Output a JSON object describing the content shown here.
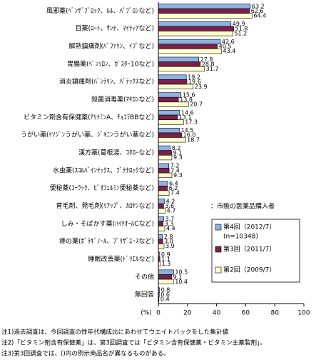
{
  "chart_data": {
    "type": "hbar",
    "categories": [
      "風邪薬(ﾍﾞﾝｻﾞﾌﾞﾛｯｸ、ﾙﾙ、ﾊﾟﾌﾞﾛﾝなど)",
      "目薬(ﾛｰﾄ、ｻﾝﾃ、ﾏｲﾃｨｱなど)",
      "解熱鎮痛剤(ﾊﾞﾌｧﾘﾝ、ｲﾌﾞなど)",
      "胃腸薬(ﾍﾞﾝｿﾛﾝ、ｶﾞｽﾀｰ10など)",
      "消炎鎮痛剤(ﾊﾞﾝﾃﾘﾝ、ﾊﾞﾃｯｸｽなど)",
      "殺菌消毒薬(ﾏｷﾛﾝなど)",
      "ビタミン剤含有保健薬(ｱﾘﾅﾐﾝA、ﾁｮｺﾗBBなど)",
      "うがい薬(ｲｿｼﾞﾝうがい薬、ｼﾞｷﾆﾝうがい薬など)",
      "漢方薬(葛根湯、ｺﾀﾛｰなど)",
      "水虫薬(ｽｺﾙﾊﾞｲﾝﾃｯｸｽ、ﾌﾞﾃﾅﾛｯｸなど)",
      "便秘薬(ｺｰﾗｯｸ、ﾋﾞｵﾌｪﾙﾐﾝ便秘薬など)",
      "育毛剤、発毛剤(ﾘｱｯﾌﾟ、ｶﾛﾔﾝなど)",
      "しみ・そばかす薬(ﾊｲﾁｵｰﾙCなど)",
      "痔の薬(ﾎﾞﾗｷﾞﾉｰﾙ、ﾌﾟﾘｻﾞｴｰｽなど)",
      "睡眠改善薬(ﾄﾞﾘｴﾙなど)",
      "その他",
      "無回答"
    ],
    "series": [
      {
        "name": "第4回（2012/7）",
        "color": "#8db3e2",
        "values": [
          63.2,
          49.9,
          42.6,
          27.8,
          19.2,
          15.6,
          14.6,
          14.5,
          8.2,
          7.2,
          6.4,
          4.2,
          3.7,
          2.8,
          0.9,
          10.5,
          0.8
        ]
      },
      {
        "name": "第3回（2011/7）",
        "color": "#7b1f4a",
        "values": [
          62.6,
          51.8,
          40.5,
          28.8,
          19.6,
          13.8,
          13.1,
          16.0,
          9.1,
          7.4,
          6.2,
          3.6,
          3.3,
          3.0,
          1.1,
          9.1,
          0.6
        ],
        "value_labels": [
          "62.6",
          "51.8",
          "40.5",
          "28.8",
          "19.6",
          "13.8",
          "13.1",
          "16.0",
          "9.1",
          "7.4",
          "6.2",
          "3.6",
          "3.3",
          "3.0",
          "1.1",
          "9.1",
          "0.6"
        ]
      },
      {
        "name": "第2回（2009/7）",
        "color": "#ffffcc",
        "values": [
          64.4,
          51.2,
          43.4,
          31.7,
          23.9,
          20.7,
          17.3,
          18.7,
          9.3,
          9.3,
          7.4,
          4.7,
          4.4,
          3.9,
          1.3,
          10.4,
          0.4
        ]
      }
    ],
    "legend_note": "(n=10348)",
    "annotation": "：市販の医薬品購入者",
    "x_label": "(%)",
    "xlim": [
      0,
      100
    ],
    "xticks": [
      0,
      20,
      40,
      60,
      80,
      100
    ],
    "grid": false,
    "notes": [
      "注1)過去調査は、今回調査の性年代構成比にあわせてウエイトバックをした集計値",
      "注2)「ビタミン剤含有保健薬」は、第3回調査では「ビタミン含有保健薬・ビタミン主薬製剤」。",
      "注3)第3回調査では、()内の例示商品名が異なるものがある。"
    ]
  }
}
